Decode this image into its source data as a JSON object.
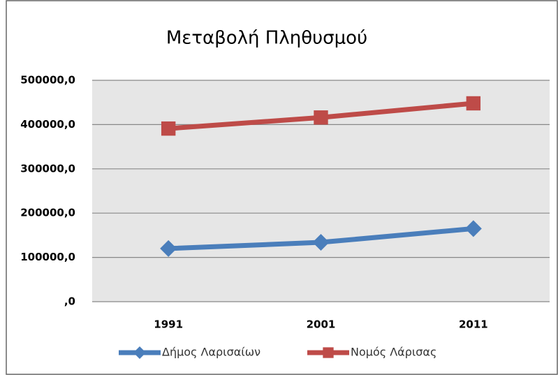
{
  "chart_data": {
    "type": "line",
    "title": "Μεταβολή Πληθυσμού",
    "categories": [
      "1991",
      "2001",
      "2011"
    ],
    "series": [
      {
        "name": "Δήμος Λαρισαίων",
        "color": "#4a7ebb",
        "marker": "diamond",
        "values": [
          120000,
          134000,
          165000
        ]
      },
      {
        "name": "Νομός Λάρισας",
        "color": "#be4b48",
        "marker": "square",
        "values": [
          391000,
          416000,
          448000
        ]
      }
    ],
    "ylim": [
      0,
      500000
    ],
    "yticks": [
      {
        "value": 0,
        "label": ",0"
      },
      {
        "value": 100000,
        "label": "100000,0"
      },
      {
        "value": 200000,
        "label": "200000,0"
      },
      {
        "value": 300000,
        "label": "300000,0"
      },
      {
        "value": 400000,
        "label": "400000,0"
      },
      {
        "value": 500000,
        "label": "500000,0"
      }
    ],
    "grid": true,
    "legend": "bottom"
  }
}
